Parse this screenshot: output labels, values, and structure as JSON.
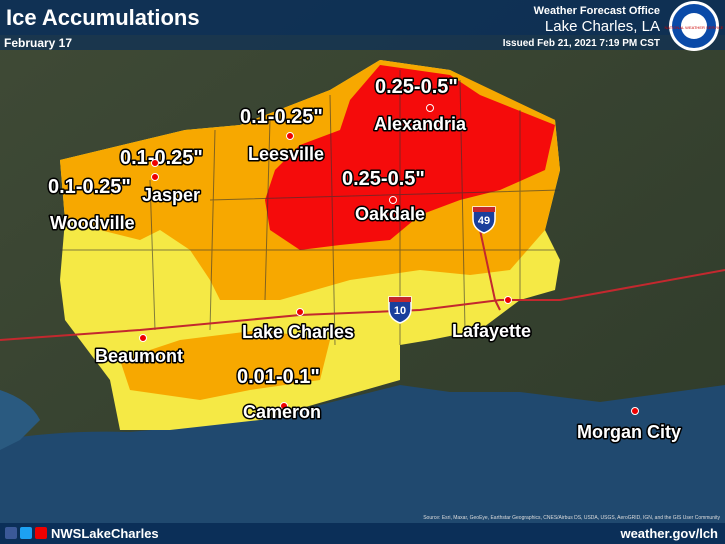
{
  "header": {
    "title": "Ice Accumulations",
    "date": "February 17",
    "office": "Weather Forecast Office",
    "location": "Lake Charles, LA",
    "issued": "Issued Feb 21, 2021 7:19 PM CST",
    "logo": "NATIONAL WEATHER SERVICE"
  },
  "amount_labels": [
    "0.25-0.5\"",
    "0.1-0.25\"",
    "0.1-0.25\"",
    "0.1-0.25\"",
    "0.25-0.5\"",
    "0.01-0.1\""
  ],
  "cities": [
    "Alexandria",
    "Leesville",
    "Jasper",
    "Woodville",
    "Oakdale",
    "Lake Charles",
    "Lafayette",
    "Beaumont",
    "Cameron",
    "Morgan City"
  ],
  "shields": [
    "49",
    "10"
  ],
  "source": "Source: Esri, Maxar, GeoEye, Earthstar Geographics, CNES/Airbus DS, USDA, USGS, AeroGRID, IGN, and the GIS User Community",
  "footer": {
    "handle": "NWSLakeCharles",
    "url": "weather.gov/lch"
  }
}
